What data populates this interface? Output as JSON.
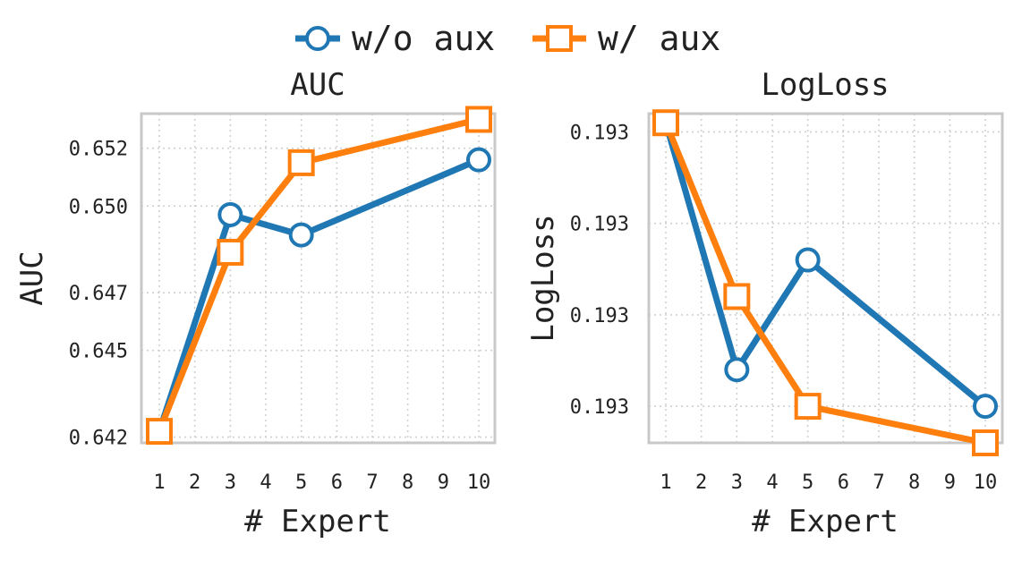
{
  "chart_data": [
    {
      "type": "line",
      "title": "AUC",
      "xlabel": "# Expert",
      "ylabel": "AUC",
      "categories": [
        "1",
        "2",
        "3",
        "4",
        "5",
        "6",
        "7",
        "8",
        "9",
        "10"
      ],
      "y_ticks": [
        "0.642",
        "0.645",
        "0.647",
        "0.650",
        "0.652"
      ],
      "ylim": [
        0.6418,
        0.6532
      ],
      "grid": true,
      "series": [
        {
          "name": "w/o aux",
          "color": "#1f77b4",
          "marker": "circle",
          "points": [
            {
              "x": "1",
              "y": 0.6422
            },
            {
              "x": "3",
              "y": 0.6497
            },
            {
              "x": "5",
              "y": 0.649
            },
            {
              "x": "10",
              "y": 0.6516
            }
          ]
        },
        {
          "name": "w/ aux",
          "color": "#ff7f0e",
          "marker": "square",
          "points": [
            {
              "x": "1",
              "y": 0.6422
            },
            {
              "x": "3",
              "y": 0.6484
            },
            {
              "x": "5",
              "y": 0.6515
            },
            {
              "x": "10",
              "y": 0.653
            }
          ]
        }
      ]
    },
    {
      "type": "line",
      "title": "LogLoss",
      "xlabel": "# Expert",
      "ylabel": "LogLoss",
      "categories": [
        "1",
        "2",
        "3",
        "4",
        "5",
        "6",
        "7",
        "8",
        "9",
        "10"
      ],
      "y_ticks": [
        "0.193",
        "0.193",
        "0.193",
        "0.193"
      ],
      "y_tick_values": [
        0.1934,
        0.1933,
        0.1932,
        0.1931
      ],
      "ylim": [
        0.19306,
        0.19342
      ],
      "grid": true,
      "series": [
        {
          "name": "w/o aux",
          "color": "#1f77b4",
          "marker": "circle",
          "points": [
            {
              "x": "1",
              "y": 0.19341
            },
            {
              "x": "3",
              "y": 0.19314
            },
            {
              "x": "5",
              "y": 0.19326
            },
            {
              "x": "10",
              "y": 0.1931
            }
          ]
        },
        {
          "name": "w/ aux",
          "color": "#ff7f0e",
          "marker": "square",
          "points": [
            {
              "x": "1",
              "y": 0.19341
            },
            {
              "x": "3",
              "y": 0.19322
            },
            {
              "x": "5",
              "y": 0.1931
            },
            {
              "x": "10",
              "y": 0.19306
            }
          ]
        }
      ]
    }
  ],
  "legend": {
    "placement": "top-center",
    "items": [
      {
        "label": "w/o aux",
        "color": "#1f77b4",
        "marker": "circle"
      },
      {
        "label": "w/ aux",
        "color": "#ff7f0e",
        "marker": "square"
      }
    ]
  }
}
